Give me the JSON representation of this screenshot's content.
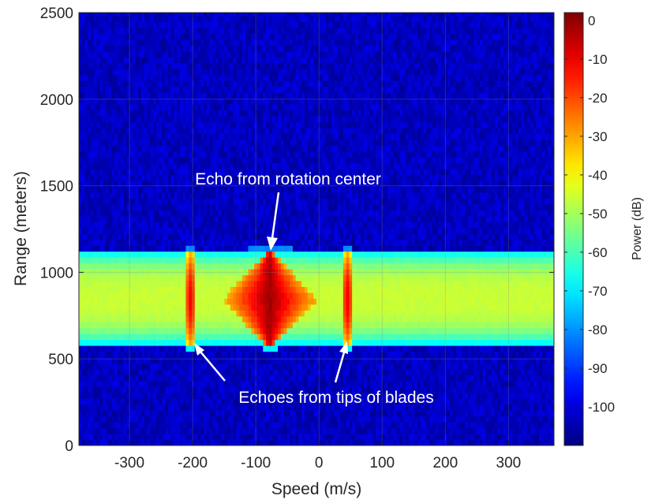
{
  "chart_data": {
    "type": "heatmap",
    "title": "",
    "xlabel": "Speed (m/s)",
    "ylabel": "Range (meters)",
    "xlim": [
      -380,
      372
    ],
    "ylim": [
      0,
      2500
    ],
    "x_ticks": [
      -300,
      -200,
      -100,
      0,
      100,
      200,
      300
    ],
    "x_tick_labels": [
      "-300",
      "-200",
      "-100",
      "0",
      "100",
      "200",
      "300"
    ],
    "y_ticks": [
      0,
      500,
      1000,
      1500,
      2000,
      2500
    ],
    "y_tick_labels": [
      "0",
      "500",
      "1000",
      "1500",
      "2000",
      "2500"
    ],
    "grid": true,
    "colormap": "jet",
    "colorbar": {
      "label": "Power (dB)",
      "range": [
        -110,
        2
      ],
      "ticks": [
        0,
        -10,
        -20,
        -30,
        -40,
        -50,
        -60,
        -70,
        -80,
        -90,
        -100
      ],
      "tick_labels": [
        "0",
        "-10",
        "-20",
        "-30",
        "-40",
        "-50",
        "-60",
        "-70",
        "-80",
        "-90",
        "-100"
      ]
    },
    "features": {
      "noise_floor_db": -103,
      "signal_band_range_m": [
        580,
        1125
      ],
      "signal_band_peak_db": -45,
      "signal_band_edge_db": -70,
      "rotation_center": {
        "speed_m_s": -78,
        "range_center_m": 845,
        "peak_db": 0
      },
      "blade_tips": [
        {
          "speed_m_s": -203,
          "range_center_m": 845,
          "peak_db": -10
        },
        {
          "speed_m_s": 45,
          "range_center_m": 845,
          "peak_db": -10
        }
      ]
    },
    "annotations": [
      {
        "text": "Echo from rotation center"
      },
      {
        "text": "Echoes from tips of blades"
      }
    ]
  }
}
